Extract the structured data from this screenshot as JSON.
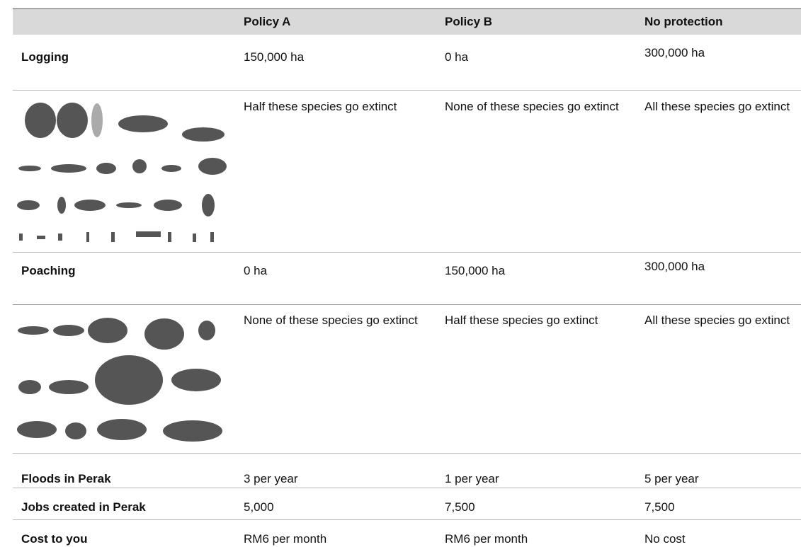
{
  "table": {
    "header": [
      "Policy A",
      "Policy B",
      "No protection"
    ],
    "rows": [
      {
        "label": "Logging",
        "cells": [
          "150,000 ha",
          "0 ha",
          "300,000 ha"
        ]
      },
      {
        "cells": [
          "Half these species go extinct",
          "None of these species go extinct",
          "All these species go extinct"
        ]
      },
      {
        "label": "Poaching",
        "cells": [
          "0 ha",
          "150,000 ha",
          "300,000 ha"
        ]
      },
      {
        "cells": [
          "None of these species go extinct",
          "Half these species go extinct",
          "All these species go extinct"
        ]
      },
      {
        "label": "Floods in Perak",
        "cells": [
          "3 per year",
          "1 per year",
          "5 per year"
        ]
      },
      {
        "label": "Jobs created in Perak",
        "cells": [
          "5,000",
          "7,500",
          "7,500"
        ]
      },
      {
        "label": "Cost to you",
        "cells": [
          "RM6 per month",
          "RM6 per month",
          "No cost"
        ]
      }
    ]
  }
}
